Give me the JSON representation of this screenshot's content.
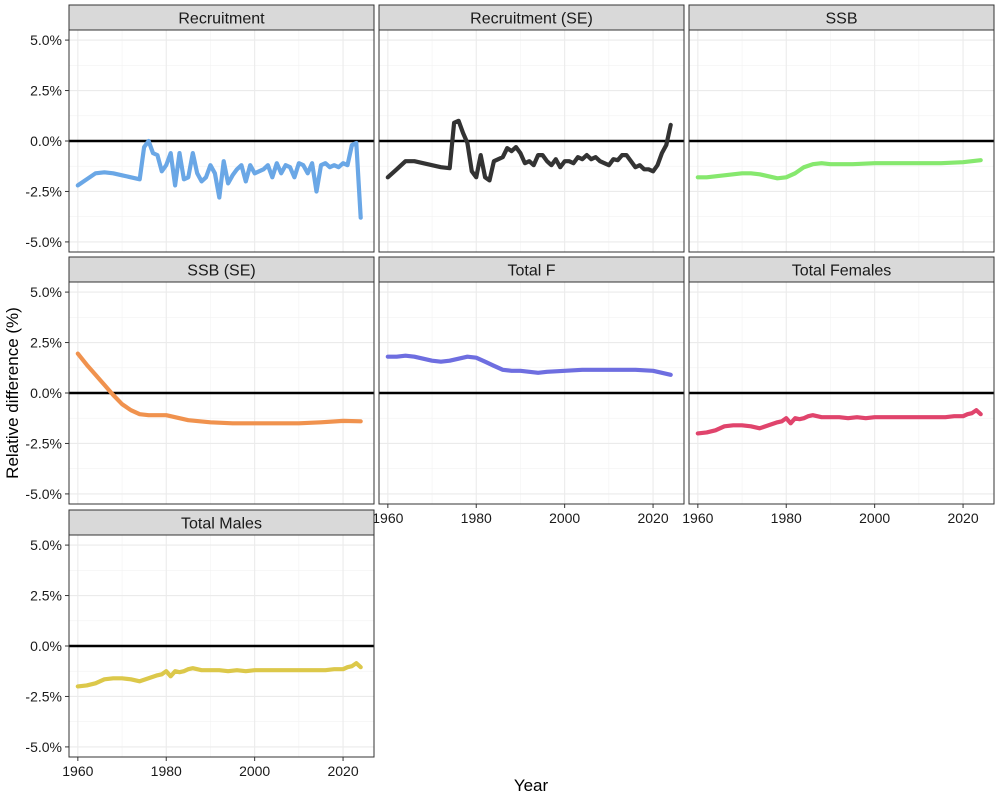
{
  "chart_data": {
    "type": "line",
    "xlabel": "Year",
    "ylabel": "Relative difference (%)",
    "xlim": [
      1958,
      2027
    ],
    "ylim": [
      -5.5,
      5.5
    ],
    "x_ticks": [
      1960,
      1980,
      2000,
      2020
    ],
    "x_tick_labels": [
      "1960",
      "1980",
      "2000",
      "2020"
    ],
    "y_ticks": [
      -5,
      -2.5,
      0,
      2.5,
      5
    ],
    "y_tick_labels": [
      "-5.0%",
      "-2.5%",
      "0.0%",
      "2.5%",
      "5.0%"
    ],
    "reference_line_y": 0,
    "grid": true,
    "legend": "none",
    "panels": [
      {
        "name": "Recruitment",
        "color": "#6aa7e6",
        "x": [
          1960,
          1962,
          1964,
          1966,
          1968,
          1970,
          1972,
          1974,
          1975,
          1976,
          1977,
          1978,
          1979,
          1980,
          1981,
          1982,
          1983,
          1984,
          1985,
          1986,
          1987,
          1988,
          1989,
          1990,
          1991,
          1992,
          1993,
          1994,
          1995,
          1996,
          1997,
          1998,
          1999,
          2000,
          2001,
          2002,
          2003,
          2004,
          2005,
          2006,
          2007,
          2008,
          2009,
          2010,
          2011,
          2012,
          2013,
          2014,
          2015,
          2016,
          2017,
          2018,
          2019,
          2020,
          2021,
          2022,
          2023,
          2024
        ],
        "values": [
          -2.2,
          -1.9,
          -1.6,
          -1.55,
          -1.6,
          -1.7,
          -1.8,
          -1.9,
          -0.3,
          0.0,
          -0.6,
          -0.7,
          -1.5,
          -1.2,
          -0.6,
          -2.2,
          -0.6,
          -1.9,
          -1.8,
          -0.6,
          -1.6,
          -2.0,
          -1.8,
          -1.2,
          -1.6,
          -2.8,
          -1.0,
          -2.1,
          -1.7,
          -1.4,
          -1.2,
          -2.0,
          -1.2,
          -1.6,
          -1.5,
          -1.4,
          -1.2,
          -1.8,
          -1.1,
          -1.6,
          -1.2,
          -1.3,
          -1.8,
          -1.1,
          -1.2,
          -1.6,
          -1.1,
          -2.5,
          -1.2,
          -1.1,
          -1.3,
          -1.2,
          -1.3,
          -1.1,
          -1.2,
          -0.2,
          -0.1,
          -3.8
        ]
      },
      {
        "name": "Recruitment (SE)",
        "color": "#333333",
        "x": [
          1960,
          1962,
          1964,
          1966,
          1968,
          1970,
          1972,
          1974,
          1975,
          1976,
          1977,
          1978,
          1979,
          1980,
          1981,
          1982,
          1983,
          1984,
          1985,
          1986,
          1987,
          1988,
          1989,
          1990,
          1991,
          1992,
          1993,
          1994,
          1995,
          1996,
          1997,
          1998,
          1999,
          2000,
          2001,
          2002,
          2003,
          2004,
          2005,
          2006,
          2007,
          2008,
          2009,
          2010,
          2011,
          2012,
          2013,
          2014,
          2015,
          2016,
          2017,
          2018,
          2019,
          2020,
          2021,
          2022,
          2023,
          2024
        ],
        "values": [
          -1.8,
          -1.4,
          -1.0,
          -1.0,
          -1.1,
          -1.2,
          -1.3,
          -1.35,
          0.9,
          1.0,
          0.4,
          -0.1,
          -1.5,
          -1.8,
          -0.7,
          -1.8,
          -1.95,
          -1.0,
          -0.9,
          -0.8,
          -0.35,
          -0.5,
          -0.3,
          -0.6,
          -1.1,
          -1.0,
          -1.2,
          -0.7,
          -0.7,
          -1.0,
          -1.2,
          -0.9,
          -1.3,
          -1.0,
          -1.0,
          -1.1,
          -0.8,
          -0.9,
          -0.7,
          -0.9,
          -0.8,
          -1.0,
          -1.1,
          -1.2,
          -0.9,
          -0.95,
          -0.7,
          -0.7,
          -1.0,
          -1.3,
          -1.2,
          -1.4,
          -1.4,
          -1.5,
          -1.2,
          -0.6,
          -0.2,
          0.8
        ]
      },
      {
        "name": "SSB",
        "color": "#86e86e",
        "x": [
          1960,
          1962,
          1964,
          1966,
          1968,
          1970,
          1972,
          1974,
          1976,
          1978,
          1980,
          1982,
          1984,
          1986,
          1988,
          1990,
          1995,
          2000,
          2005,
          2010,
          2015,
          2020,
          2024
        ],
        "values": [
          -1.8,
          -1.8,
          -1.75,
          -1.7,
          -1.65,
          -1.6,
          -1.6,
          -1.65,
          -1.75,
          -1.85,
          -1.8,
          -1.6,
          -1.3,
          -1.15,
          -1.1,
          -1.15,
          -1.15,
          -1.1,
          -1.1,
          -1.1,
          -1.1,
          -1.05,
          -0.95
        ]
      },
      {
        "name": "SSB (SE)",
        "color": "#f0924e",
        "x": [
          1960,
          1962,
          1964,
          1966,
          1968,
          1970,
          1972,
          1974,
          1976,
          1978,
          1980,
          1982,
          1985,
          1990,
          1995,
          2000,
          2005,
          2010,
          2015,
          2020,
          2024
        ],
        "values": [
          1.95,
          1.4,
          0.9,
          0.4,
          -0.1,
          -0.55,
          -0.85,
          -1.05,
          -1.1,
          -1.1,
          -1.1,
          -1.2,
          -1.35,
          -1.45,
          -1.5,
          -1.5,
          -1.5,
          -1.5,
          -1.45,
          -1.38,
          -1.4
        ]
      },
      {
        "name": "Total F",
        "color": "#6e6ee0",
        "x": [
          1960,
          1962,
          1964,
          1966,
          1968,
          1970,
          1972,
          1974,
          1976,
          1978,
          1980,
          1982,
          1984,
          1986,
          1988,
          1990,
          1992,
          1994,
          1996,
          2000,
          2004,
          2008,
          2012,
          2016,
          2020,
          2024
        ],
        "values": [
          1.8,
          1.8,
          1.85,
          1.8,
          1.7,
          1.6,
          1.55,
          1.6,
          1.7,
          1.8,
          1.75,
          1.55,
          1.35,
          1.15,
          1.1,
          1.1,
          1.05,
          1.0,
          1.05,
          1.1,
          1.15,
          1.15,
          1.15,
          1.15,
          1.1,
          0.9
        ]
      },
      {
        "name": "Total Females",
        "color": "#e0446c",
        "x": [
          1960,
          1962,
          1964,
          1966,
          1968,
          1970,
          1972,
          1974,
          1976,
          1978,
          1979,
          1980,
          1981,
          1982,
          1983,
          1984,
          1985,
          1986,
          1987,
          1988,
          1990,
          1992,
          1994,
          1996,
          1998,
          2000,
          2004,
          2008,
          2012,
          2016,
          2018,
          2020,
          2021,
          2022,
          2023,
          2024
        ],
        "values": [
          -2.0,
          -1.95,
          -1.85,
          -1.65,
          -1.6,
          -1.6,
          -1.65,
          -1.75,
          -1.6,
          -1.45,
          -1.4,
          -1.25,
          -1.5,
          -1.25,
          -1.3,
          -1.25,
          -1.15,
          -1.1,
          -1.15,
          -1.2,
          -1.2,
          -1.2,
          -1.25,
          -1.2,
          -1.25,
          -1.2,
          -1.2,
          -1.2,
          -1.2,
          -1.2,
          -1.15,
          -1.15,
          -1.05,
          -1.0,
          -0.85,
          -1.05
        ]
      },
      {
        "name": "Total Males",
        "color": "#dcc84a",
        "x": [
          1960,
          1962,
          1964,
          1966,
          1968,
          1970,
          1972,
          1974,
          1976,
          1978,
          1979,
          1980,
          1981,
          1982,
          1983,
          1984,
          1985,
          1986,
          1987,
          1988,
          1990,
          1992,
          1994,
          1996,
          1998,
          2000,
          2004,
          2008,
          2012,
          2016,
          2018,
          2020,
          2021,
          2022,
          2023,
          2024
        ],
        "values": [
          -2.0,
          -1.95,
          -1.85,
          -1.65,
          -1.6,
          -1.6,
          -1.65,
          -1.75,
          -1.6,
          -1.45,
          -1.4,
          -1.25,
          -1.5,
          -1.25,
          -1.3,
          -1.25,
          -1.15,
          -1.1,
          -1.15,
          -1.2,
          -1.2,
          -1.2,
          -1.25,
          -1.2,
          -1.25,
          -1.2,
          -1.2,
          -1.2,
          -1.2,
          -1.2,
          -1.15,
          -1.15,
          -1.05,
          -1.0,
          -0.85,
          -1.05
        ]
      }
    ]
  }
}
